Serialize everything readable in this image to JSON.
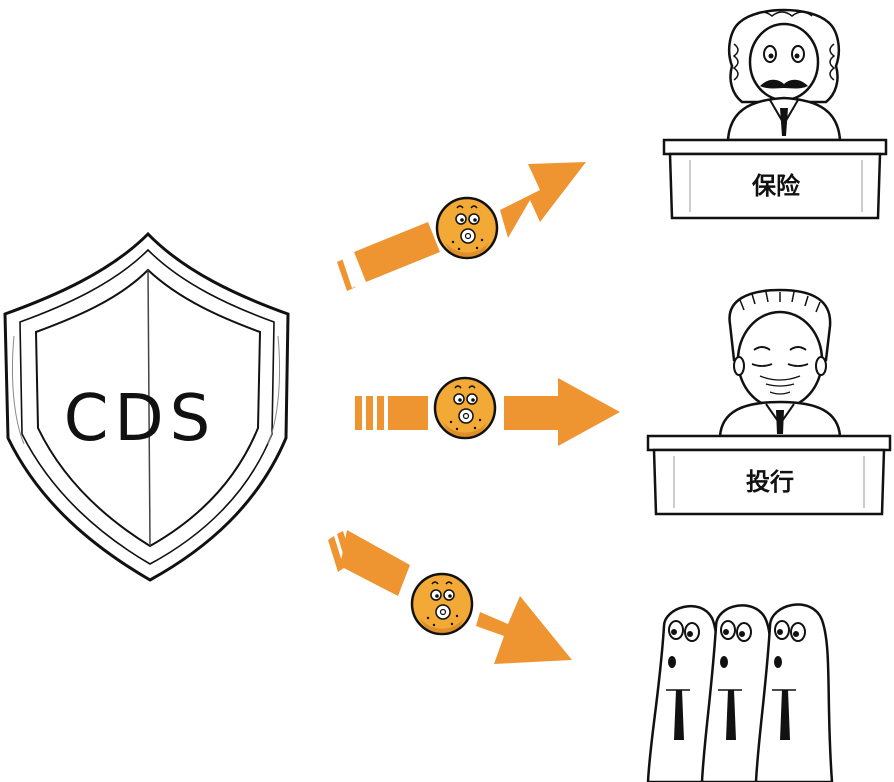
{
  "shield": {
    "label": "CDS"
  },
  "recipients": [
    {
      "label": "保险"
    },
    {
      "label": "投行"
    }
  ],
  "colors": {
    "arrow": "#ee9532",
    "coin": "#f2a935",
    "coin_shadow": "#c9761a",
    "ink": "#111111"
  }
}
